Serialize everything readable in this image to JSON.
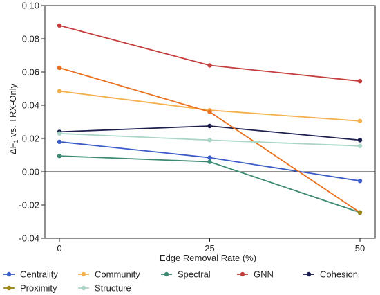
{
  "chart_data": {
    "type": "line",
    "x": [
      0,
      25,
      50
    ],
    "xlabel": "Edge Removal Rate (%)",
    "ylabel_main": "ΔF",
    "ylabel_sub": "1",
    "ylabel_rest": " vs. TRX-Only",
    "ylim": [
      -0.04,
      0.1
    ],
    "yticks": [
      -0.04,
      -0.02,
      0.0,
      0.02,
      0.04,
      0.06,
      0.08,
      0.1
    ],
    "ytick_labels": [
      "-0.04",
      "-0.02",
      "0.00",
      "0.02",
      "0.04",
      "0.06",
      "0.08",
      "0.10"
    ],
    "xtick_labels": [
      "0",
      "25",
      "50"
    ],
    "zero_line": true,
    "grid": false,
    "legend_position": "bottom",
    "series": [
      {
        "name": "Centrality",
        "color": "#3a5bc7",
        "values": [
          0.018,
          0.0085,
          -0.0055
        ]
      },
      {
        "name": "Community",
        "color": "#f5b04e",
        "values": [
          0.0485,
          0.037,
          0.0305
        ]
      },
      {
        "name": "Spectral",
        "color": "#3c8a74",
        "values": [
          0.0095,
          0.006,
          -0.0245
        ]
      },
      {
        "name": "GNN",
        "color": "#c43e3e",
        "values": [
          0.088,
          0.064,
          0.0545
        ]
      },
      {
        "name": "Cohesion",
        "color": "#1d1f4f",
        "values": [
          0.024,
          0.0275,
          0.019
        ]
      },
      {
        "name": "Proximity",
        "color": "#9e8410",
        "values": [
          0.0625,
          0.036,
          -0.0245
        ]
      },
      {
        "name": "Structure",
        "color": "#a9d5c8",
        "values": [
          0.023,
          0.019,
          0.0155
        ]
      }
    ],
    "proximity_line_color": "#e8701e"
  }
}
